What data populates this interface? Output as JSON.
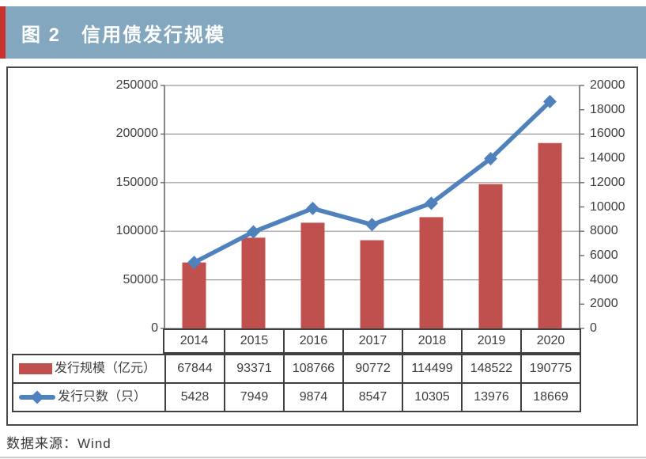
{
  "header": {
    "title": "图 2　信用债发行规模"
  },
  "footer": {
    "source": "数据来源：Wind"
  },
  "colors": {
    "header_bg": "#84a7c0",
    "accent_red": "#c8342c",
    "bar": "#c0504d",
    "line": "#4f81bd",
    "grid": "#9a9a9a",
    "axis": "#6b6b6b",
    "table_border": "#3f3f3f"
  },
  "chart_data": {
    "type": "combo-bar-line",
    "categories": [
      "2014",
      "2015",
      "2016",
      "2017",
      "2018",
      "2019",
      "2020"
    ],
    "series": [
      {
        "name": "发行规模（亿元）",
        "type": "bar",
        "axis": "left",
        "color": "#c0504d",
        "values": [
          67844,
          93371,
          108766,
          90772,
          114499,
          148522,
          190775
        ]
      },
      {
        "name": "发行只数（只）",
        "type": "line",
        "axis": "right",
        "marker": "diamond",
        "color": "#4f81bd",
        "values": [
          5428,
          7949,
          9874,
          8547,
          10305,
          13976,
          18669
        ]
      }
    ],
    "left_axis": {
      "min": 0,
      "max": 250000,
      "step": 50000,
      "tick_labels": [
        "250000",
        "200000",
        "150000",
        "100000",
        "50000",
        "0"
      ]
    },
    "right_axis": {
      "min": 0,
      "max": 20000,
      "step": 2000,
      "tick_labels": [
        "20000",
        "18000",
        "16000",
        "14000",
        "12000",
        "10000",
        "8000",
        "6000",
        "4000",
        "2000",
        "0"
      ]
    },
    "grid": true,
    "legend_position": "table-left"
  }
}
